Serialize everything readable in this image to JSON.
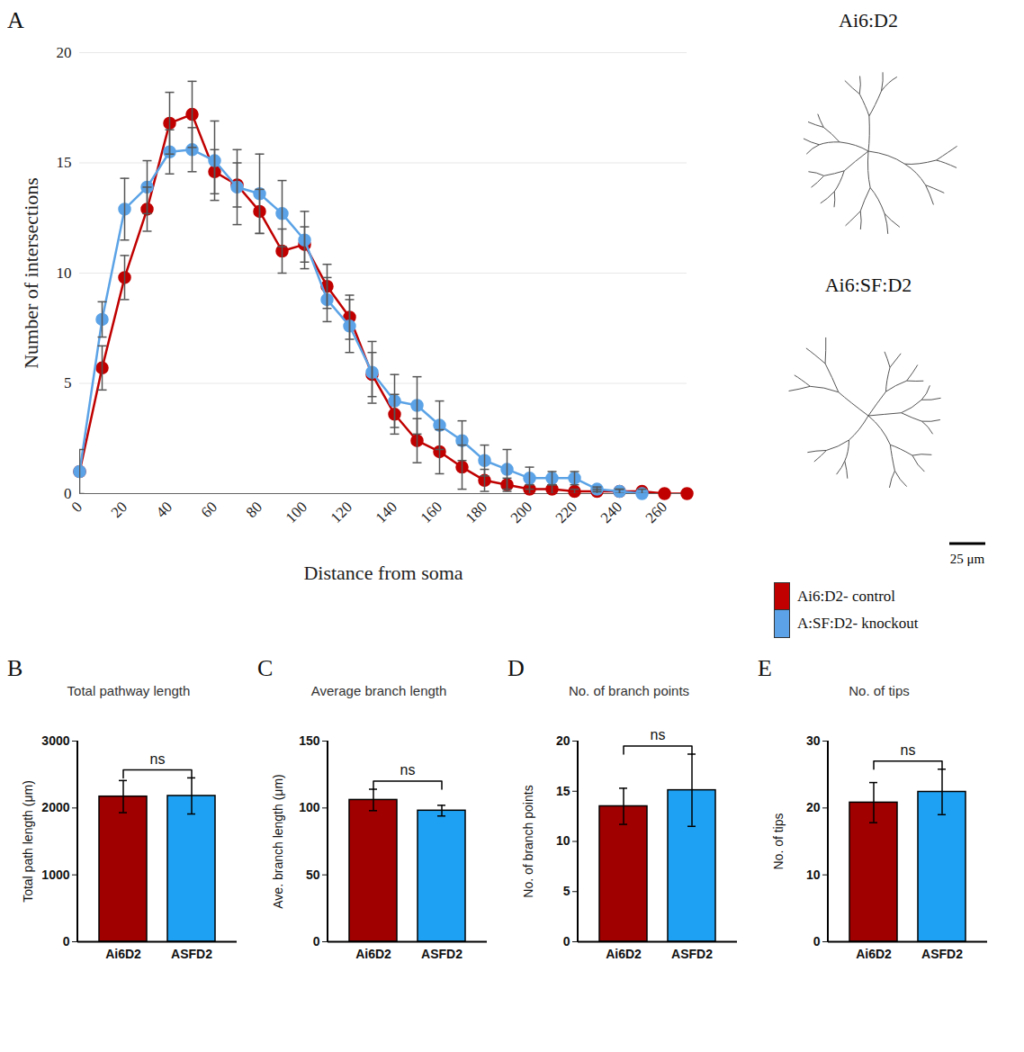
{
  "chart_data": [
    {
      "panel": "A",
      "type": "line",
      "x_label": "Distance from soma",
      "y_label": "Number of intersections",
      "x": [
        0,
        10,
        20,
        30,
        40,
        50,
        60,
        70,
        80,
        90,
        100,
        110,
        120,
        130,
        140,
        150,
        160,
        170,
        180,
        190,
        200,
        210,
        220,
        230,
        240,
        250,
        260,
        270
      ],
      "series": [
        {
          "name": "Ai6:D2- control",
          "color": "#c00000",
          "marker": "circle",
          "values": [
            1,
            5.7,
            9.8,
            12.9,
            16.8,
            17.2,
            14.6,
            14.0,
            12.8,
            11.0,
            11.3,
            9.4,
            8.0,
            5.4,
            3.6,
            2.4,
            1.9,
            1.2,
            0.6,
            0.4,
            0.2,
            0.2,
            0.1,
            0.1,
            0.1,
            0.1,
            0,
            0
          ],
          "errors": [
            1.0,
            1.0,
            1.0,
            1.0,
            1.4,
            1.5,
            1.0,
            1.0,
            1.0,
            1.0,
            0.8,
            1.0,
            1.0,
            1.0,
            0.9,
            1.0,
            1.0,
            1.0,
            0.5,
            0.3,
            0.2,
            0.2,
            0.1,
            0.1,
            0.1,
            0.1,
            0,
            0
          ]
        },
        {
          "name": "A:SF:D2- knockout",
          "color": "#5ba3e6",
          "marker": "circle",
          "values": [
            1,
            7.9,
            12.9,
            13.9,
            15.5,
            15.6,
            15.1,
            13.9,
            13.6,
            12.7,
            11.5,
            8.8,
            7.6,
            5.5,
            4.2,
            4.0,
            3.1,
            2.4,
            1.5,
            1.1,
            0.7,
            0.7,
            0.7,
            0.2,
            0.1,
            0.0,
            null,
            null
          ],
          "errors": [
            0,
            0.8,
            1.4,
            1.2,
            1.0,
            1.0,
            1.8,
            1.7,
            1.8,
            1.5,
            1.3,
            1.0,
            1.2,
            1.4,
            1.2,
            1.3,
            1.1,
            0.9,
            0.7,
            0.9,
            0.5,
            0.3,
            0.3,
            0.1,
            0.1,
            0,
            null,
            null
          ]
        }
      ],
      "xlim": [
        0,
        270
      ],
      "xticks": [
        0,
        20,
        40,
        60,
        80,
        100,
        120,
        140,
        160,
        180,
        200,
        220,
        240,
        260
      ],
      "ylim": [
        0,
        20
      ],
      "yticks": [
        0,
        5,
        10,
        15,
        20
      ],
      "grid": true,
      "legend": "right",
      "insets": [
        "Ai6:D2",
        "Ai6:SF:D2"
      ],
      "scale_bar": "25 μm"
    },
    {
      "panel": "B",
      "type": "bar",
      "title": "Total pathway length",
      "y_label": "Total path length (μm)",
      "categories": [
        "Ai6D2",
        "ASFD2"
      ],
      "values": [
        2170,
        2180
      ],
      "errors": [
        240,
        270
      ],
      "colors": [
        "#a00000",
        "#1ea1f2"
      ],
      "ylim": [
        0,
        3000
      ],
      "yticks": [
        0,
        1000,
        2000,
        3000
      ],
      "annotation": "ns"
    },
    {
      "panel": "C",
      "type": "bar",
      "title": "Average branch length",
      "y_label": "Ave. branch length (μm)",
      "categories": [
        "Ai6D2",
        "ASFD2"
      ],
      "values": [
        106,
        98
      ],
      "errors": [
        8,
        4
      ],
      "colors": [
        "#a00000",
        "#1ea1f2"
      ],
      "ylim": [
        0,
        150
      ],
      "yticks": [
        0,
        50,
        100,
        150
      ],
      "annotation": "ns"
    },
    {
      "panel": "D",
      "type": "bar",
      "title": "No. of branch points",
      "y_label": "No. of branch points",
      "categories": [
        "Ai6D2",
        "ASFD2"
      ],
      "values": [
        13.5,
        15.1
      ],
      "errors": [
        1.8,
        3.6
      ],
      "colors": [
        "#a00000",
        "#1ea1f2"
      ],
      "ylim": [
        0,
        20
      ],
      "yticks": [
        0,
        5,
        10,
        15,
        20
      ],
      "annotation": "ns"
    },
    {
      "panel": "E",
      "type": "bar",
      "title": "No. of tips",
      "y_label": "No. of tips",
      "categories": [
        "Ai6D2",
        "ASFD2"
      ],
      "values": [
        20.8,
        22.4
      ],
      "errors": [
        3.0,
        3.4
      ],
      "colors": [
        "#a00000",
        "#1ea1f2"
      ],
      "ylim": [
        0,
        30
      ],
      "yticks": [
        0,
        10,
        20,
        30
      ],
      "annotation": "ns"
    }
  ]
}
